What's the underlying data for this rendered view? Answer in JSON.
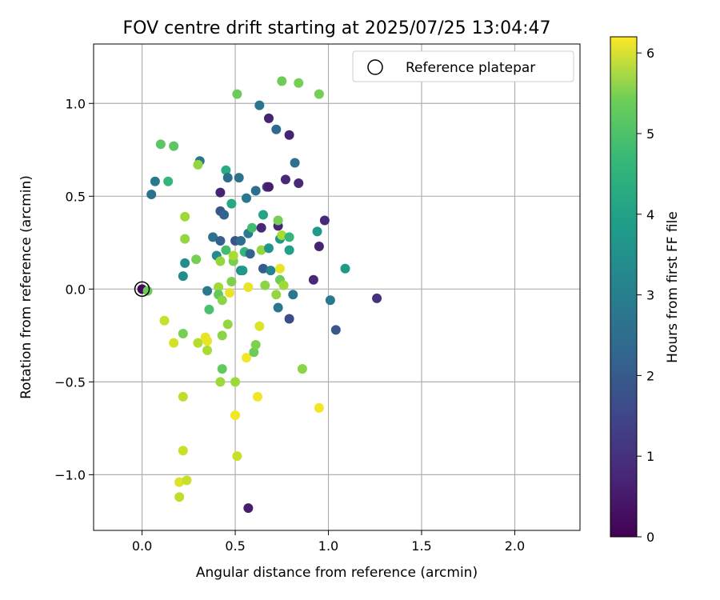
{
  "chart_data": {
    "type": "scatter",
    "title": "FOV centre drift starting at 2025/07/25 13:04:47",
    "xlabel": "Angular distance from reference (arcmin)",
    "ylabel": "Rotation from reference (arcmin)",
    "xlim": [
      -0.26,
      2.35
    ],
    "ylim": [
      -1.3,
      1.32
    ],
    "xticks": [
      0.0,
      0.5,
      1.0,
      1.5,
      2.0
    ],
    "xtick_labels": [
      "0.0",
      "0.5",
      "1.0",
      "1.5",
      "2.0"
    ],
    "yticks": [
      -1.0,
      -0.5,
      0.0,
      0.5,
      1.0
    ],
    "ytick_labels": [
      "−1.0",
      "−0.5",
      "0.0",
      "0.5",
      "1.0"
    ],
    "grid": true,
    "legend": {
      "placement": "top-right",
      "entries": [
        "Reference platepar"
      ]
    },
    "colorbar": {
      "label": "Hours from first FF file",
      "colormap": "viridis",
      "range": [
        0,
        6.2
      ],
      "ticks": [
        0,
        1,
        2,
        3,
        4,
        5,
        6
      ],
      "tick_labels": [
        "0",
        "1",
        "2",
        "3",
        "4",
        "5",
        "6"
      ]
    },
    "reference_point": {
      "x": 0.0,
      "y": 0.0
    },
    "points": [
      {
        "x": 0.0,
        "y": 0.0,
        "t": 0.1
      },
      {
        "x": 0.03,
        "y": -0.01,
        "t": 4.8
      },
      {
        "x": 0.05,
        "y": 0.51,
        "t": 2.3
      },
      {
        "x": 0.07,
        "y": 0.58,
        "t": 2.5
      },
      {
        "x": 0.1,
        "y": 0.78,
        "t": 4.6
      },
      {
        "x": 0.14,
        "y": 0.58,
        "t": 4.1
      },
      {
        "x": 0.17,
        "y": 0.77,
        "t": 4.6
      },
      {
        "x": 0.12,
        "y": -0.17,
        "t": 5.7
      },
      {
        "x": 0.17,
        "y": -0.29,
        "t": 5.8
      },
      {
        "x": 0.2,
        "y": -1.04,
        "t": 5.9
      },
      {
        "x": 0.2,
        "y": -1.12,
        "t": 5.6
      },
      {
        "x": 0.22,
        "y": -0.24,
        "t": 4.9
      },
      {
        "x": 0.22,
        "y": -0.58,
        "t": 5.6
      },
      {
        "x": 0.22,
        "y": -0.87,
        "t": 5.7
      },
      {
        "x": 0.23,
        "y": 0.39,
        "t": 5.3
      },
      {
        "x": 0.23,
        "y": 0.27,
        "t": 5.2
      },
      {
        "x": 0.23,
        "y": 0.14,
        "t": 3.0
      },
      {
        "x": 0.22,
        "y": 0.07,
        "t": 3.0
      },
      {
        "x": 0.24,
        "y": -1.03,
        "t": 5.7
      },
      {
        "x": 0.29,
        "y": 0.16,
        "t": 4.9
      },
      {
        "x": 0.31,
        "y": 0.69,
        "t": 2.4
      },
      {
        "x": 0.3,
        "y": 0.67,
        "t": 5.2
      },
      {
        "x": 0.3,
        "y": -0.29,
        "t": 5.5
      },
      {
        "x": 0.34,
        "y": -0.26,
        "t": 6.0
      },
      {
        "x": 0.35,
        "y": -0.28,
        "t": 6.0
      },
      {
        "x": 0.35,
        "y": -0.33,
        "t": 5.4
      },
      {
        "x": 0.35,
        "y": -0.01,
        "t": 2.5
      },
      {
        "x": 0.36,
        "y": -0.11,
        "t": 4.4
      },
      {
        "x": 0.38,
        "y": 0.28,
        "t": 2.3
      },
      {
        "x": 0.4,
        "y": 0.18,
        "t": 3.0
      },
      {
        "x": 0.41,
        "y": 0.01,
        "t": 5.3
      },
      {
        "x": 0.41,
        "y": -0.03,
        "t": 4.7
      },
      {
        "x": 0.42,
        "y": 0.42,
        "t": 1.7
      },
      {
        "x": 0.42,
        "y": 0.52,
        "t": 0.6
      },
      {
        "x": 0.42,
        "y": 0.26,
        "t": 1.9
      },
      {
        "x": 0.42,
        "y": 0.15,
        "t": 5.2
      },
      {
        "x": 0.42,
        "y": -0.5,
        "t": 5.3
      },
      {
        "x": 0.43,
        "y": -0.06,
        "t": 5.1
      },
      {
        "x": 0.43,
        "y": -0.25,
        "t": 5.1
      },
      {
        "x": 0.43,
        "y": -0.43,
        "t": 4.7
      },
      {
        "x": 0.44,
        "y": 0.4,
        "t": 2.0
      },
      {
        "x": 0.45,
        "y": 0.64,
        "t": 3.8
      },
      {
        "x": 0.45,
        "y": 0.21,
        "t": 4.3
      },
      {
        "x": 0.46,
        "y": 0.6,
        "t": 2.2
      },
      {
        "x": 0.46,
        "y": -0.19,
        "t": 5.2
      },
      {
        "x": 0.47,
        "y": -0.02,
        "t": 6.0
      },
      {
        "x": 0.48,
        "y": 0.46,
        "t": 3.7
      },
      {
        "x": 0.48,
        "y": 0.04,
        "t": 5.0
      },
      {
        "x": 0.49,
        "y": 0.15,
        "t": 4.9
      },
      {
        "x": 0.49,
        "y": 0.18,
        "t": 5.4
      },
      {
        "x": 0.5,
        "y": 0.26,
        "t": 1.6
      },
      {
        "x": 0.5,
        "y": -0.5,
        "t": 5.3
      },
      {
        "x": 0.5,
        "y": -0.68,
        "t": 6.1
      },
      {
        "x": 0.51,
        "y": -0.9,
        "t": 5.7
      },
      {
        "x": 0.51,
        "y": 1.05,
        "t": 4.8
      },
      {
        "x": 0.52,
        "y": 0.6,
        "t": 2.3
      },
      {
        "x": 0.53,
        "y": 0.26,
        "t": 2.2
      },
      {
        "x": 0.53,
        "y": 0.1,
        "t": 2.9
      },
      {
        "x": 0.54,
        "y": 0.1,
        "t": 3.3
      },
      {
        "x": 0.55,
        "y": 0.2,
        "t": 4.1
      },
      {
        "x": 0.56,
        "y": 0.49,
        "t": 2.5
      },
      {
        "x": 0.56,
        "y": -0.37,
        "t": 6.1
      },
      {
        "x": 0.57,
        "y": 0.3,
        "t": 2.6
      },
      {
        "x": 0.57,
        "y": 0.01,
        "t": 6.0
      },
      {
        "x": 0.57,
        "y": -1.18,
        "t": 0.5
      },
      {
        "x": 0.58,
        "y": 0.19,
        "t": 2.0
      },
      {
        "x": 0.59,
        "y": 0.33,
        "t": 4.3
      },
      {
        "x": 0.6,
        "y": -0.34,
        "t": 4.8
      },
      {
        "x": 0.61,
        "y": 0.53,
        "t": 2.2
      },
      {
        "x": 0.61,
        "y": -0.3,
        "t": 5.0
      },
      {
        "x": 0.62,
        "y": -0.58,
        "t": 6.1
      },
      {
        "x": 0.63,
        "y": 0.99,
        "t": 2.4
      },
      {
        "x": 0.63,
        "y": -0.2,
        "t": 5.9
      },
      {
        "x": 0.64,
        "y": 0.33,
        "t": 0.7
      },
      {
        "x": 0.64,
        "y": 0.21,
        "t": 5.2
      },
      {
        "x": 0.65,
        "y": 0.4,
        "t": 3.6
      },
      {
        "x": 0.65,
        "y": 0.11,
        "t": 1.8
      },
      {
        "x": 0.66,
        "y": 0.02,
        "t": 5.1
      },
      {
        "x": 0.67,
        "y": 0.55,
        "t": 1.2
      },
      {
        "x": 0.68,
        "y": 0.55,
        "t": 0.5
      },
      {
        "x": 0.68,
        "y": 0.92,
        "t": 0.6
      },
      {
        "x": 0.68,
        "y": 0.22,
        "t": 3.2
      },
      {
        "x": 0.69,
        "y": 0.1,
        "t": 2.8
      },
      {
        "x": 0.72,
        "y": 0.86,
        "t": 2.1
      },
      {
        "x": 0.72,
        "y": -0.03,
        "t": 5.2
      },
      {
        "x": 0.73,
        "y": 0.34,
        "t": 0.6
      },
      {
        "x": 0.73,
        "y": 0.37,
        "t": 4.9
      },
      {
        "x": 0.73,
        "y": -0.1,
        "t": 2.4
      },
      {
        "x": 0.74,
        "y": 0.27,
        "t": 3.3
      },
      {
        "x": 0.74,
        "y": 0.11,
        "t": 6.0
      },
      {
        "x": 0.74,
        "y": 0.05,
        "t": 4.8
      },
      {
        "x": 0.75,
        "y": 1.12,
        "t": 4.8
      },
      {
        "x": 0.75,
        "y": 0.29,
        "t": 5.4
      },
      {
        "x": 0.76,
        "y": 0.02,
        "t": 5.3
      },
      {
        "x": 0.77,
        "y": 0.59,
        "t": 0.7
      },
      {
        "x": 0.79,
        "y": 0.83,
        "t": 0.6
      },
      {
        "x": 0.79,
        "y": 0.21,
        "t": 3.5
      },
      {
        "x": 0.79,
        "y": 0.28,
        "t": 4.1
      },
      {
        "x": 0.79,
        "y": -0.16,
        "t": 1.4
      },
      {
        "x": 0.81,
        "y": -0.03,
        "t": 2.5
      },
      {
        "x": 0.82,
        "y": 0.68,
        "t": 2.3
      },
      {
        "x": 0.84,
        "y": 1.11,
        "t": 4.9
      },
      {
        "x": 0.84,
        "y": 0.57,
        "t": 0.7
      },
      {
        "x": 0.86,
        "y": -0.43,
        "t": 5.1
      },
      {
        "x": 0.92,
        "y": 0.05,
        "t": 0.7
      },
      {
        "x": 0.94,
        "y": 0.31,
        "t": 3.3
      },
      {
        "x": 0.95,
        "y": 1.05,
        "t": 4.9
      },
      {
        "x": 0.95,
        "y": 0.23,
        "t": 0.6
      },
      {
        "x": 0.95,
        "y": -0.64,
        "t": 6.1
      },
      {
        "x": 0.98,
        "y": 0.37,
        "t": 0.7
      },
      {
        "x": 1.01,
        "y": -0.06,
        "t": 2.5
      },
      {
        "x": 1.04,
        "y": -0.22,
        "t": 1.7
      },
      {
        "x": 1.09,
        "y": 0.11,
        "t": 3.3
      },
      {
        "x": 1.26,
        "y": -0.05,
        "t": 0.9
      }
    ]
  }
}
